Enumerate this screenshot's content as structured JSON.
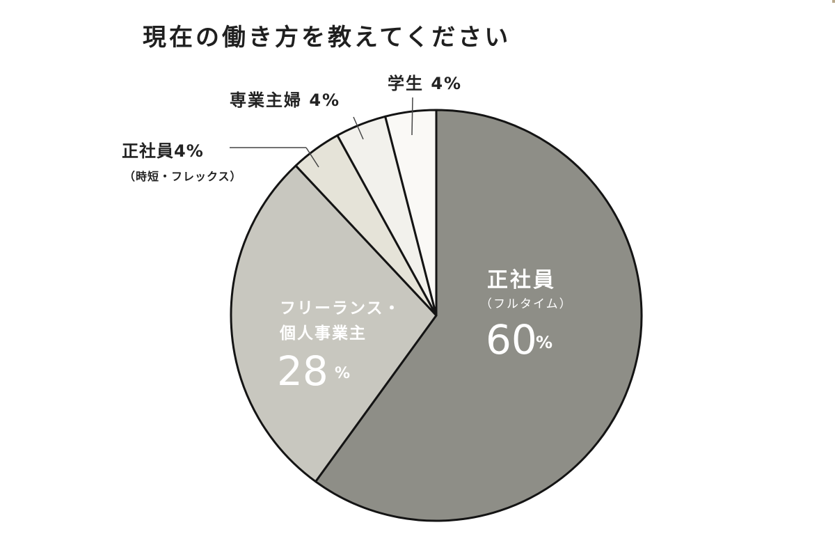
{
  "chart_data": {
    "type": "pie",
    "title": "現在の働き方を教えてください",
    "start_angle": "12 o'clock, clockwise",
    "slices": [
      {
        "category": "正社員",
        "sublabel": "（フルタイム）",
        "value": 60,
        "value_text": "60",
        "unit": "%",
        "color": "#8e8e87"
      },
      {
        "category": "フリーランス・",
        "category_line2": "個人事業主",
        "value": 28,
        "value_text": "28",
        "unit": "%",
        "color": "#c8c7bf"
      },
      {
        "category": "正社員4%",
        "sublabel": "（時短・フレックス）",
        "value": 4,
        "color": "#e5e3d8"
      },
      {
        "category": "専業主婦 4%",
        "value": 4,
        "color": "#f2f1ec"
      },
      {
        "category": "学生 4%",
        "value": 4,
        "color": "#faf9f6"
      }
    ]
  }
}
